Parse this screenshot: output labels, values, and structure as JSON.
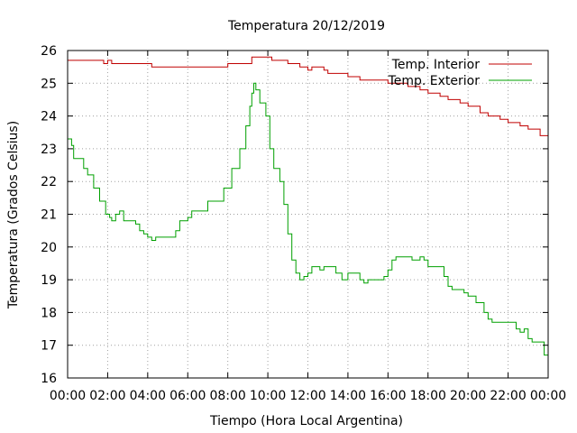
{
  "chart_data": {
    "type": "line",
    "title": "Temperatura 20/12/2019",
    "xlabel": "Tiempo (Hora Local Argentina)",
    "ylabel": "Temperatura (Grados Celsius)",
    "x_unit": "hours",
    "xlim": [
      0,
      24
    ],
    "ylim": [
      16,
      26
    ],
    "x_ticks": [
      0,
      2,
      4,
      6,
      8,
      10,
      12,
      14,
      16,
      18,
      20,
      22,
      24
    ],
    "x_tick_labels": [
      "00:00",
      "02:00",
      "04:00",
      "06:00",
      "08:00",
      "10:00",
      "12:00",
      "14:00",
      "16:00",
      "18:00",
      "20:00",
      "22:00",
      "00:00"
    ],
    "y_ticks": [
      16,
      17,
      18,
      19,
      20,
      21,
      22,
      23,
      24,
      25,
      26
    ],
    "y_tick_labels": [
      "16",
      "17",
      "18",
      "19",
      "20",
      "21",
      "22",
      "23",
      "24",
      "25",
      "26"
    ],
    "grid": true,
    "legend_position": "top-right",
    "series": [
      {
        "name": "Temp. Interior",
        "color": "#c00000",
        "points": [
          [
            0,
            25.7
          ],
          [
            1.6,
            25.7
          ],
          [
            1.8,
            25.6
          ],
          [
            2.0,
            25.7
          ],
          [
            2.2,
            25.6
          ],
          [
            4.0,
            25.6
          ],
          [
            4.2,
            25.5
          ],
          [
            7.0,
            25.5
          ],
          [
            7.8,
            25.5
          ],
          [
            8.0,
            25.6
          ],
          [
            9.0,
            25.6
          ],
          [
            9.2,
            25.8
          ],
          [
            10.0,
            25.8
          ],
          [
            10.2,
            25.7
          ],
          [
            10.8,
            25.7
          ],
          [
            11.0,
            25.6
          ],
          [
            11.6,
            25.5
          ],
          [
            12.0,
            25.4
          ],
          [
            12.2,
            25.5
          ],
          [
            12.6,
            25.5
          ],
          [
            12.8,
            25.4
          ],
          [
            13.0,
            25.3
          ],
          [
            13.8,
            25.3
          ],
          [
            14.0,
            25.2
          ],
          [
            14.4,
            25.2
          ],
          [
            14.6,
            25.1
          ],
          [
            15.6,
            25.1
          ],
          [
            16.0,
            25.0
          ],
          [
            16.6,
            25.0
          ],
          [
            17.0,
            24.9
          ],
          [
            17.6,
            24.8
          ],
          [
            18.0,
            24.7
          ],
          [
            18.6,
            24.6
          ],
          [
            19.0,
            24.5
          ],
          [
            19.6,
            24.4
          ],
          [
            20.0,
            24.3
          ],
          [
            20.6,
            24.1
          ],
          [
            21.0,
            24.0
          ],
          [
            21.6,
            23.9
          ],
          [
            22.0,
            23.8
          ],
          [
            22.6,
            23.7
          ],
          [
            23.0,
            23.6
          ],
          [
            23.6,
            23.4
          ],
          [
            24.0,
            23.3
          ]
        ]
      },
      {
        "name": "Temp. Exterior",
        "color": "#00a000",
        "points": [
          [
            0,
            23.3
          ],
          [
            0.2,
            23.1
          ],
          [
            0.3,
            22.7
          ],
          [
            0.5,
            22.7
          ],
          [
            0.8,
            22.4
          ],
          [
            1.0,
            22.2
          ],
          [
            1.3,
            21.8
          ],
          [
            1.6,
            21.4
          ],
          [
            1.9,
            21.0
          ],
          [
            2.1,
            20.9
          ],
          [
            2.2,
            20.8
          ],
          [
            2.4,
            21.0
          ],
          [
            2.6,
            21.1
          ],
          [
            2.8,
            20.8
          ],
          [
            3.2,
            20.8
          ],
          [
            3.4,
            20.7
          ],
          [
            3.6,
            20.5
          ],
          [
            3.8,
            20.4
          ],
          [
            4.0,
            20.3
          ],
          [
            4.2,
            20.2
          ],
          [
            4.4,
            20.3
          ],
          [
            5.0,
            20.3
          ],
          [
            5.4,
            20.5
          ],
          [
            5.6,
            20.8
          ],
          [
            6.0,
            20.9
          ],
          [
            6.2,
            21.1
          ],
          [
            6.8,
            21.1
          ],
          [
            7.0,
            21.4
          ],
          [
            7.4,
            21.4
          ],
          [
            7.8,
            21.8
          ],
          [
            8.2,
            22.4
          ],
          [
            8.6,
            23.0
          ],
          [
            8.9,
            23.7
          ],
          [
            9.1,
            24.3
          ],
          [
            9.2,
            24.7
          ],
          [
            9.3,
            25.0
          ],
          [
            9.4,
            24.8
          ],
          [
            9.6,
            24.4
          ],
          [
            9.9,
            24.0
          ],
          [
            10.1,
            23.0
          ],
          [
            10.3,
            22.4
          ],
          [
            10.6,
            22.0
          ],
          [
            10.8,
            21.3
          ],
          [
            11.0,
            20.4
          ],
          [
            11.2,
            19.6
          ],
          [
            11.4,
            19.2
          ],
          [
            11.6,
            19.0
          ],
          [
            11.8,
            19.1
          ],
          [
            12.0,
            19.2
          ],
          [
            12.2,
            19.4
          ],
          [
            12.6,
            19.3
          ],
          [
            12.8,
            19.4
          ],
          [
            13.2,
            19.4
          ],
          [
            13.4,
            19.2
          ],
          [
            13.7,
            19.0
          ],
          [
            14.0,
            19.2
          ],
          [
            14.4,
            19.2
          ],
          [
            14.6,
            19.0
          ],
          [
            14.8,
            18.9
          ],
          [
            15.0,
            19.0
          ],
          [
            15.4,
            19.0
          ],
          [
            15.8,
            19.1
          ],
          [
            16.0,
            19.3
          ],
          [
            16.2,
            19.6
          ],
          [
            16.4,
            19.7
          ],
          [
            17.0,
            19.7
          ],
          [
            17.2,
            19.6
          ],
          [
            17.4,
            19.6
          ],
          [
            17.6,
            19.7
          ],
          [
            17.8,
            19.6
          ],
          [
            18.0,
            19.4
          ],
          [
            18.6,
            19.4
          ],
          [
            18.8,
            19.1
          ],
          [
            19.0,
            18.8
          ],
          [
            19.2,
            18.7
          ],
          [
            19.6,
            18.7
          ],
          [
            19.8,
            18.6
          ],
          [
            20.0,
            18.5
          ],
          [
            20.4,
            18.3
          ],
          [
            20.8,
            18.0
          ],
          [
            21.0,
            17.8
          ],
          [
            21.2,
            17.7
          ],
          [
            22.2,
            17.7
          ],
          [
            22.4,
            17.5
          ],
          [
            22.6,
            17.4
          ],
          [
            22.8,
            17.5
          ],
          [
            23.0,
            17.2
          ],
          [
            23.2,
            17.1
          ],
          [
            23.6,
            17.1
          ],
          [
            23.8,
            16.7
          ],
          [
            24.0,
            16.3
          ],
          [
            24.0,
            16.2
          ]
        ]
      }
    ]
  }
}
